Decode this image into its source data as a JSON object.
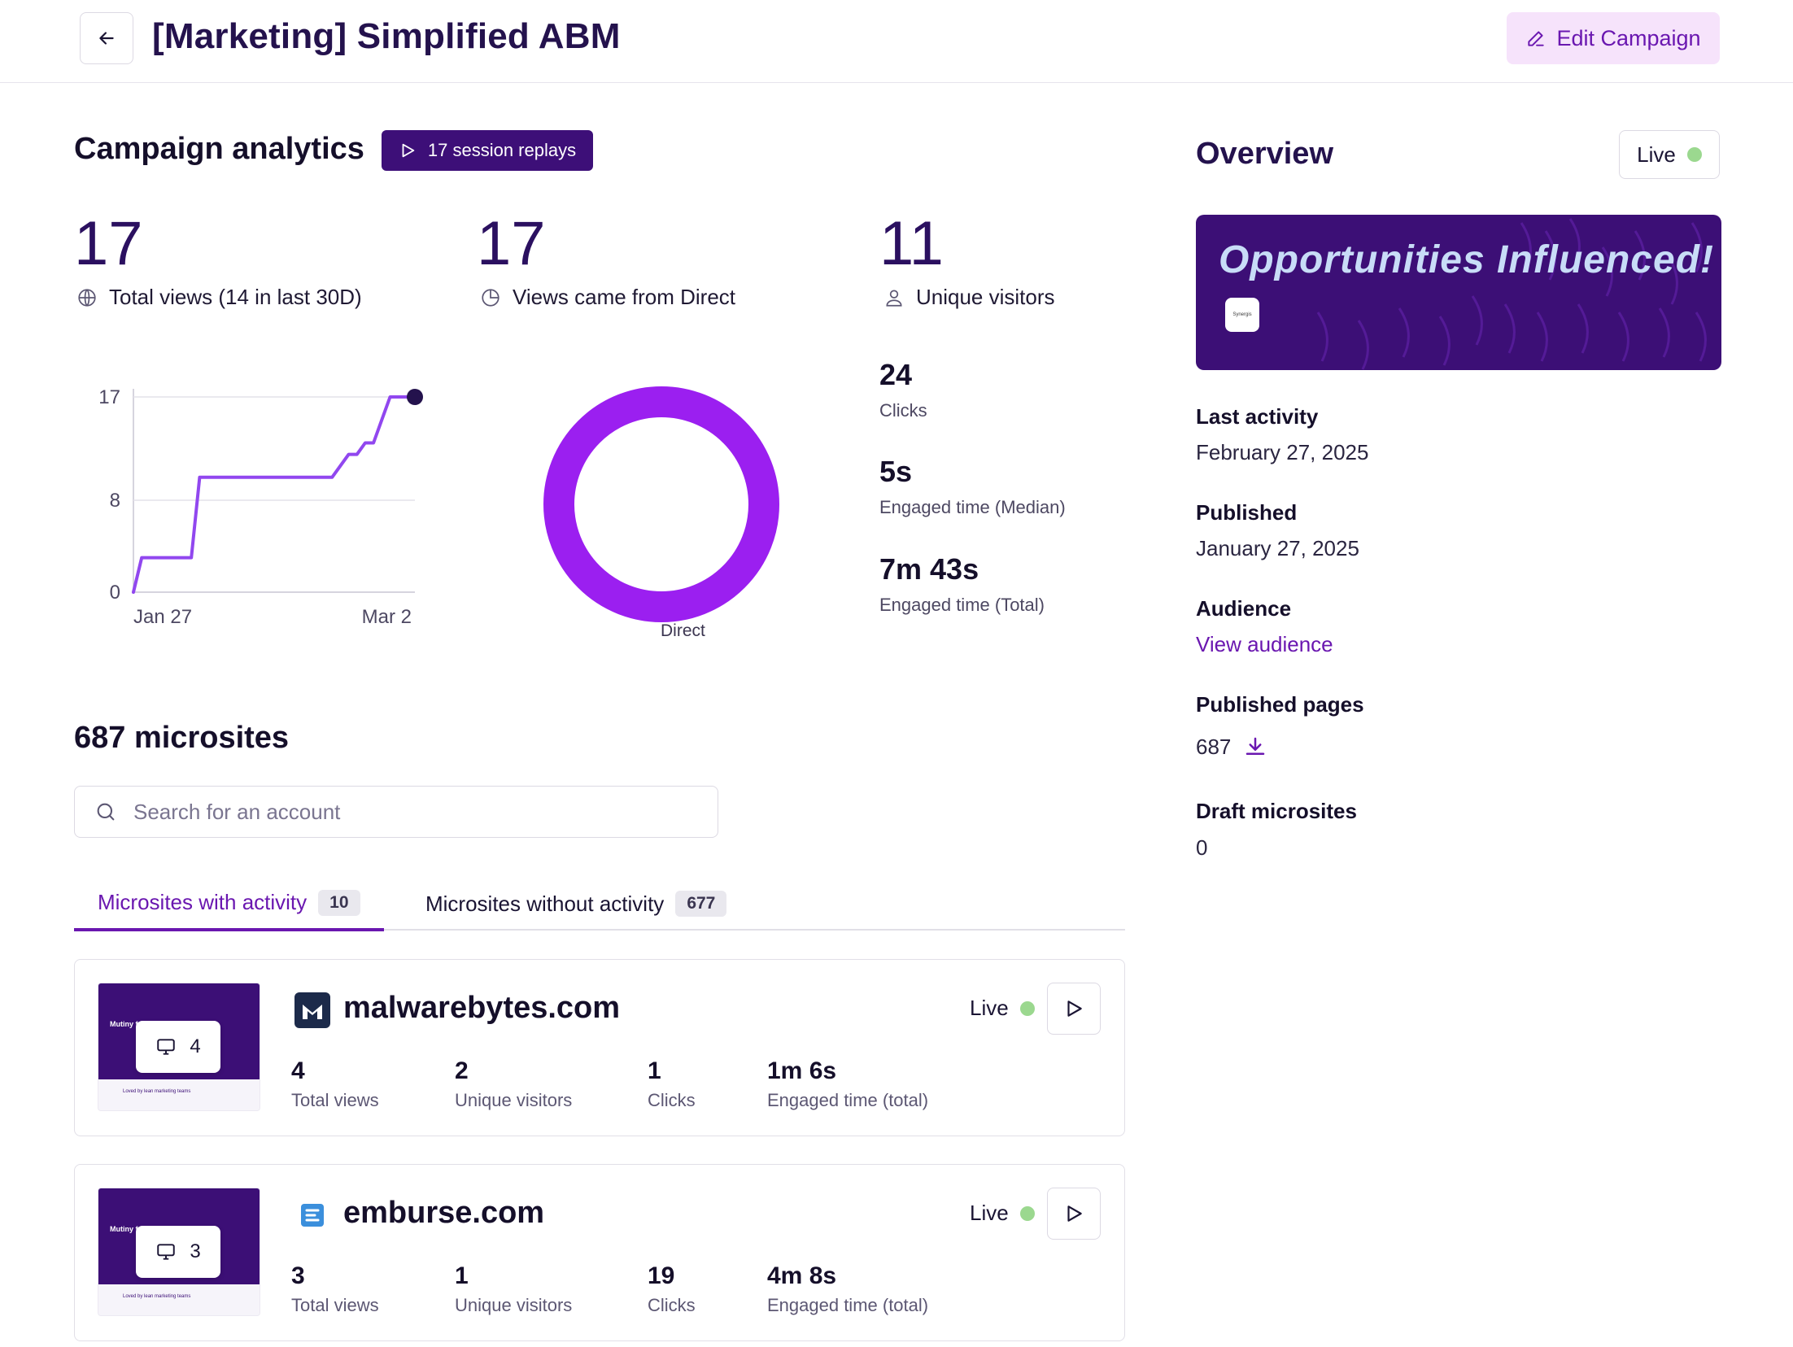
{
  "header": {
    "title": "[Marketing] Simplified ABM",
    "edit_label": "Edit Campaign"
  },
  "analytics": {
    "title": "Campaign analytics",
    "replays_label": "17 session replays",
    "stats": [
      {
        "value": "17",
        "label": "Total views (14 in last 30D)",
        "icon": "globe-icon"
      },
      {
        "value": "17",
        "label": "Views came from Direct",
        "icon": "pie-clock-icon"
      },
      {
        "value": "11",
        "label": "Unique visitors",
        "icon": "user-icon"
      }
    ],
    "kpis": [
      {
        "value": "24",
        "label": "Clicks"
      },
      {
        "value": "5s",
        "label": "Engaged time (Median)"
      },
      {
        "value": "7m 43s",
        "label": "Engaged time (Total)"
      }
    ]
  },
  "chart_data": [
    {
      "type": "line",
      "title": "",
      "xlabel": "",
      "ylabel": "",
      "x_tick_labels": [
        "Jan 27",
        "Mar 2"
      ],
      "y_ticks": [
        0,
        8,
        17
      ],
      "ylim": [
        0,
        17
      ],
      "grid": true,
      "series": [
        {
          "color": "#9147ef",
          "x": [
            "Jan 27",
            "Jan 28",
            "Feb 3",
            "Feb 4",
            "Feb 12",
            "Feb 20",
            "Feb 21",
            "Feb 22",
            "Feb 23",
            "Feb 24",
            "Feb 25",
            "Feb 26",
            "Feb 27",
            "Mar 2"
          ],
          "values": [
            0,
            3,
            3,
            10,
            10,
            10,
            11,
            12,
            12,
            13,
            13,
            15,
            17,
            17
          ]
        }
      ]
    },
    {
      "type": "pie",
      "title": "",
      "slices": [
        {
          "label": "Direct",
          "value": 17,
          "color": "#9b1ff0"
        }
      ]
    }
  ],
  "microsites": {
    "title": "687 microsites",
    "search_placeholder": "Search for an account",
    "tabs": [
      {
        "label": "Microsites with activity",
        "count": "10"
      },
      {
        "label": "Microsites without activity",
        "count": "677"
      }
    ],
    "items": [
      {
        "domain": "malwarebytes.com",
        "status": "Live",
        "thumb_count": "4",
        "stats": [
          {
            "value": "4",
            "label": "Total views"
          },
          {
            "value": "2",
            "label": "Unique visitors"
          },
          {
            "value": "1",
            "label": "Clicks"
          },
          {
            "value": "1m 6s",
            "label": "Engaged time (total)"
          }
        ]
      },
      {
        "domain": "emburse.com",
        "status": "Live",
        "thumb_count": "3",
        "stats": [
          {
            "value": "3",
            "label": "Total views"
          },
          {
            "value": "1",
            "label": "Unique visitors"
          },
          {
            "value": "19",
            "label": "Clicks"
          },
          {
            "value": "4m 8s",
            "label": "Engaged time (total)"
          }
        ]
      }
    ],
    "thumb_text": "Mutiny fo",
    "thumb_strip": "Loved by lean marketing teams"
  },
  "overview": {
    "title": "Overview",
    "status": "Live",
    "banner_text": "Opportunities Influenced!",
    "banner_logo_text": "Synergis",
    "last_activity_label": "Last activity",
    "last_activity_value": "February 27, 2025",
    "published_label": "Published",
    "published_value": "January 27, 2025",
    "audience_label": "Audience",
    "audience_link": "View audience",
    "pages_label": "Published pages",
    "pages_value": "687",
    "drafts_label": "Draft microsites",
    "drafts_value": "0"
  },
  "colors": {
    "brand": "#3c0f76",
    "accent": "#6a17b0",
    "line": "#9147ef",
    "donut": "#9b1ff0",
    "live": "#9bd88f"
  }
}
